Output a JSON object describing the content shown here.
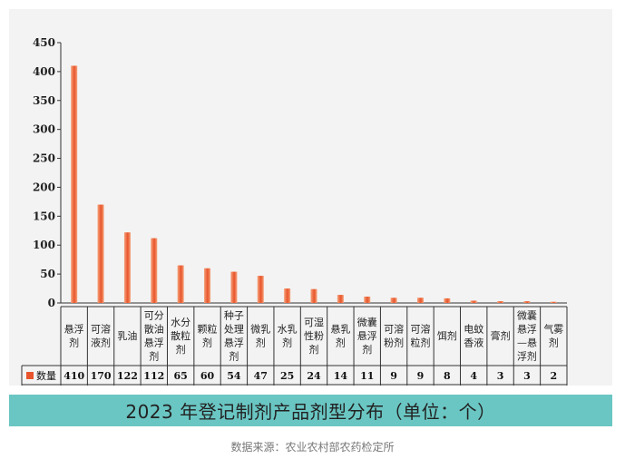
{
  "title": "2023 年登记制剂产品剂型分布（单位：个）",
  "source": "数据来源：农业农村部农药检定所",
  "colors": {
    "bar_light": "#f6a27a",
    "bar_dark": "#e8552c",
    "banner": "#6ac6c3"
  },
  "chart_data": {
    "type": "bar",
    "title": "",
    "xlabel": "",
    "ylabel": "",
    "ylim": [
      0,
      450
    ],
    "yticks": [
      0,
      50,
      100,
      150,
      200,
      250,
      300,
      350,
      400,
      450
    ],
    "legend": "bottom-left",
    "categories": [
      [
        "悬浮",
        "剂"
      ],
      [
        "可溶",
        "液剂"
      ],
      [
        "乳油"
      ],
      [
        "可分",
        "散油",
        "悬浮",
        "剂"
      ],
      [
        "水分",
        "散粒",
        "剂"
      ],
      [
        "颗粒",
        "剂"
      ],
      [
        "种子",
        "处理",
        "悬浮",
        "剂"
      ],
      [
        "微乳",
        "剂"
      ],
      [
        "水乳",
        "剂"
      ],
      [
        "可湿",
        "性粉",
        "剂"
      ],
      [
        "悬乳",
        "剂"
      ],
      [
        "微囊",
        "悬浮",
        "剂"
      ],
      [
        "可溶",
        "粉剂"
      ],
      [
        "可溶",
        "粒剂"
      ],
      [
        "饵剂"
      ],
      [
        "电蚊",
        "香液"
      ],
      [
        "膏剂"
      ],
      [
        "微囊",
        "悬浮",
        "—悬",
        "浮剂"
      ],
      [
        "气雾",
        "剂"
      ]
    ],
    "series": [
      {
        "name": "数量",
        "values": [
          410,
          170,
          122,
          112,
          65,
          60,
          54,
          47,
          25,
          24,
          14,
          11,
          9,
          9,
          8,
          4,
          3,
          3,
          2
        ]
      }
    ]
  }
}
